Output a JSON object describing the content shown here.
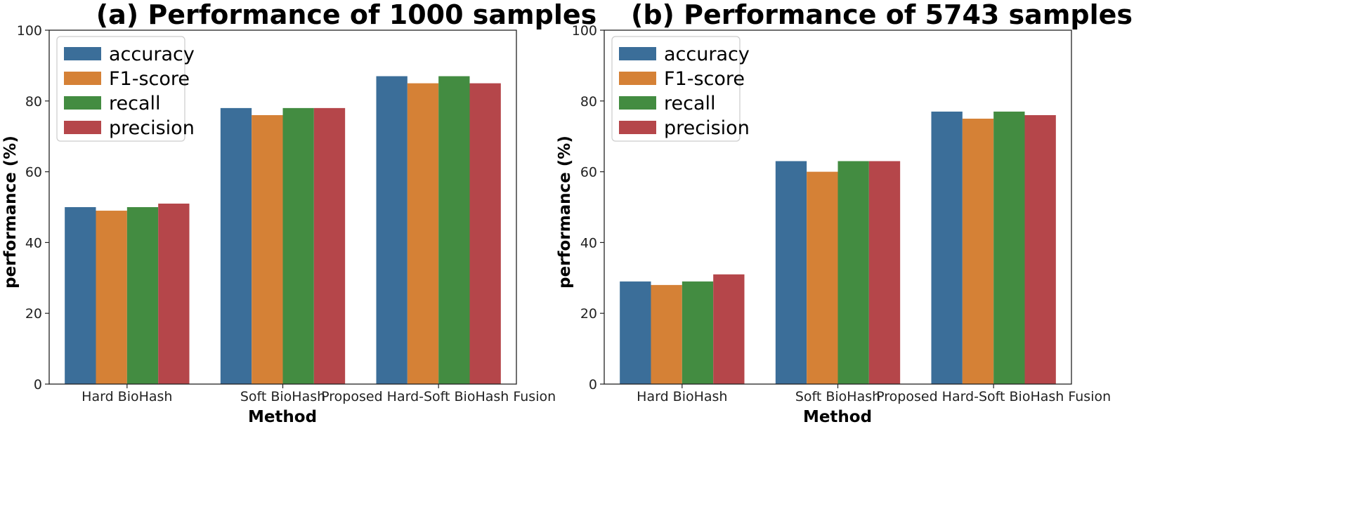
{
  "chart_data": [
    {
      "type": "bar",
      "title": "(a) Performance of 1000 samples",
      "xlabel": "Method",
      "ylabel": "performance (%)",
      "ylim": [
        0,
        100
      ],
      "yticks": [
        "0",
        "20",
        "40",
        "60",
        "80",
        "100"
      ],
      "categories": [
        "Hard BioHash",
        "Soft BioHash",
        "Proposed Hard-Soft BioHash Fusion"
      ],
      "series": [
        {
          "name": "accuracy",
          "color": "#3b6e99",
          "values": [
            50,
            78,
            87
          ]
        },
        {
          "name": "F1-score",
          "color": "#d58136",
          "values": [
            49,
            76,
            85
          ]
        },
        {
          "name": "recall",
          "color": "#438c41",
          "values": [
            50,
            78,
            87
          ]
        },
        {
          "name": "precision",
          "color": "#b5464a",
          "values": [
            51,
            78,
            85
          ]
        }
      ],
      "legend_position": "top-left"
    },
    {
      "type": "bar",
      "title": "(b) Performance of 5743 samples",
      "xlabel": "Method",
      "ylabel": "performance (%)",
      "ylim": [
        0,
        100
      ],
      "yticks": [
        "0",
        "20",
        "40",
        "60",
        "80",
        "100"
      ],
      "categories": [
        "Hard BioHash",
        "Soft BioHash",
        "Proposed Hard-Soft BioHash Fusion"
      ],
      "series": [
        {
          "name": "accuracy",
          "color": "#3b6e99",
          "values": [
            29,
            63,
            77
          ]
        },
        {
          "name": "F1-score",
          "color": "#d58136",
          "values": [
            28,
            60,
            75
          ]
        },
        {
          "name": "recall",
          "color": "#438c41",
          "values": [
            29,
            63,
            77
          ]
        },
        {
          "name": "precision",
          "color": "#b5464a",
          "values": [
            31,
            63,
            76
          ]
        }
      ],
      "legend_position": "top-left"
    }
  ]
}
